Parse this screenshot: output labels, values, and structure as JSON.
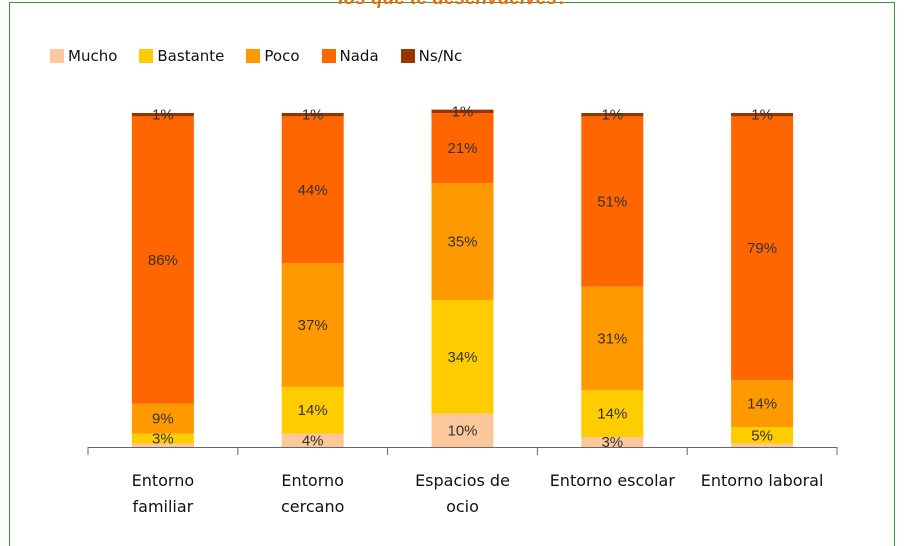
{
  "chart_data": {
    "type": "stacked_bar",
    "title": "los que te desenvuelves?",
    "categories": [
      "Entorno\nfamiliar",
      "Entorno\ncercano",
      "Espacios de\nocio",
      "Entorno escolar",
      "Entorno laboral"
    ],
    "ylim": [
      0,
      100
    ],
    "legend": "top-left",
    "series": [
      {
        "name": "Mucho",
        "color": "#fcc89b",
        "values": [
          1,
          4,
          10,
          3,
          1
        ],
        "value_labels": [
          null,
          "4%",
          "10%",
          "3%",
          null
        ]
      },
      {
        "name": "Bastante",
        "color": "#ffcc00",
        "values": [
          3,
          14,
          34,
          14,
          5
        ],
        "value_labels": [
          "3%",
          "14%",
          "34%",
          "14%",
          "5%"
        ]
      },
      {
        "name": "Poco",
        "color": "#ff9900",
        "values": [
          9,
          37,
          35,
          31,
          14
        ],
        "value_labels": [
          "9%",
          "37%",
          "35%",
          "31%",
          "14%"
        ]
      },
      {
        "name": "Nada",
        "color": "#ff6600",
        "values": [
          86,
          44,
          21,
          51,
          79
        ],
        "value_labels": [
          "86%",
          "44%",
          "21%",
          "51%",
          "79%"
        ]
      },
      {
        "name": "Ns/Nc",
        "color": "#993300",
        "values": [
          1,
          1,
          1,
          1,
          1
        ],
        "value_labels": [
          "1%",
          "1%",
          "1%",
          "1%",
          "1%"
        ]
      }
    ]
  }
}
